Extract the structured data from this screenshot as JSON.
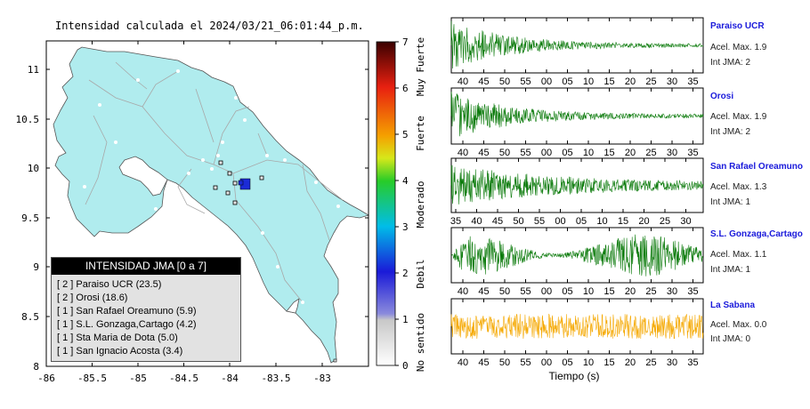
{
  "map": {
    "title": "Intensidad calculada el 2024/03/21_06:01:44_p.m.",
    "x_ticks": [
      "-86",
      "-85.5",
      "-85",
      "-84.5",
      "-84",
      "-83.5",
      "-83"
    ],
    "y_ticks": [
      "11",
      "10.5",
      "10",
      "9.5",
      "9",
      "8.5",
      "8"
    ],
    "sea_color": "#ffffff",
    "land_color": "#b0ecee",
    "road_color": "#a8a8a8",
    "border_color": "#606060"
  },
  "legend": {
    "header": "INTENSIDAD JMA [0 a 7]",
    "items": [
      "[ 2 ]  Paraiso UCR (23.5)",
      "[ 2 ]  Orosi (18.6)",
      "[ 1 ]  San Rafael Oreamuno (5.9)",
      "[ 1 ]  S.L. Gonzaga,Cartago (4.2)",
      "[ 1 ]  Sta Maria de Dota (5.0)",
      "[ 1 ]  San Ignacio Acosta (3.4)"
    ]
  },
  "colorbar": {
    "ticks": [
      "0",
      "1",
      "2",
      "3",
      "4",
      "5",
      "6",
      "7"
    ],
    "categories": [
      "No sentido",
      "Debil",
      "Moderado",
      "Fuerte",
      "Muy Fuerte"
    ]
  },
  "stations": [
    {
      "name": "Paraiso UCR",
      "acel": "Acel. Max. 1.9",
      "jma": "Int JMA: 2",
      "color": "#0a7a0a",
      "ticks": [
        "40",
        "45",
        "50",
        "55",
        "00",
        "05",
        "10",
        "15",
        "20",
        "25",
        "30",
        "35"
      ]
    },
    {
      "name": "Orosi",
      "acel": "Acel. Max. 1.9",
      "jma": "Int JMA: 2",
      "color": "#0a7a0a",
      "ticks": [
        "40",
        "45",
        "50",
        "55",
        "00",
        "05",
        "10",
        "15",
        "20",
        "25",
        "30",
        "35"
      ]
    },
    {
      "name": "San Rafael Oreamuno",
      "acel": "Acel. Max. 1.3",
      "jma": "Int JMA: 1",
      "color": "#0a7a0a",
      "ticks": [
        "35",
        "40",
        "45",
        "50",
        "55",
        "00",
        "05",
        "10",
        "15",
        "20",
        "25",
        "30"
      ]
    },
    {
      "name": "S.L. Gonzaga,Cartago",
      "acel": "Acel. Max. 1.1",
      "jma": "Int JMA: 1",
      "color": "#0a7a0a",
      "ticks": [
        "40",
        "45",
        "50",
        "55",
        "00",
        "05",
        "10",
        "15",
        "20",
        "25",
        "30",
        "35"
      ]
    },
    {
      "name": "La Sabana",
      "acel": "Acel. Max. 0.0",
      "jma": "Int JMA: 0",
      "color": "#f5a800",
      "ticks": [
        "40",
        "45",
        "50",
        "55",
        "00",
        "05",
        "10",
        "15",
        "20",
        "25",
        "30",
        "35"
      ]
    }
  ],
  "time_axis_label": "Tiempo (s)"
}
